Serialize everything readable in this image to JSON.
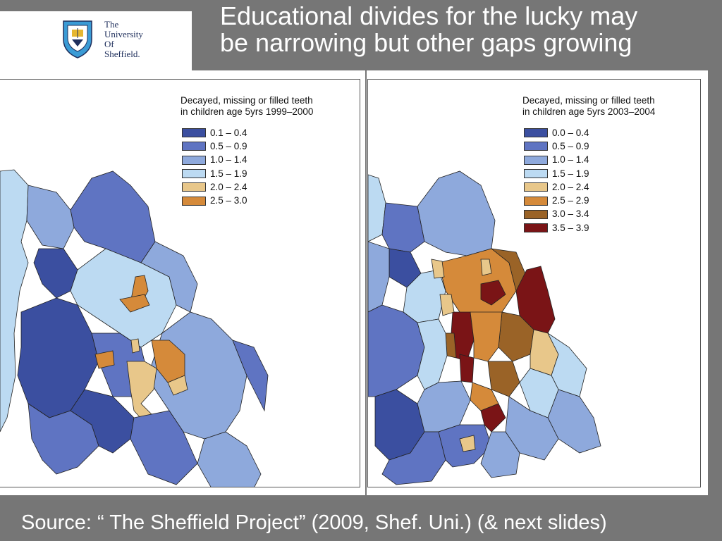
{
  "logo": {
    "line1": "The",
    "line2": "University",
    "line3": "Of",
    "line4": "Sheffield.",
    "icon": "university-crest-icon"
  },
  "title": {
    "line1": "Educational divides for the lucky may",
    "line2": "be narrowing but other gaps growing"
  },
  "maps": {
    "left": {
      "legend_title_line1": "Decayed, missing or filled teeth",
      "legend_title_line2": "in children age 5yrs 1999–2000",
      "classes": [
        {
          "label": "0.1 – 0.4",
          "color": "#3b4fa0"
        },
        {
          "label": "0.5 – 0.9",
          "color": "#5f74c2"
        },
        {
          "label": "1.0 – 1.4",
          "color": "#8ea9dc"
        },
        {
          "label": "1.5 – 1.9",
          "color": "#bcdaf2"
        },
        {
          "label": "2.0 – 2.4",
          "color": "#e8c78a"
        },
        {
          "label": "2.5 – 3.0",
          "color": "#d58a3a"
        }
      ]
    },
    "right": {
      "legend_title_line1": "Decayed, missing or filled teeth",
      "legend_title_line2": "in children age 5yrs 2003–2004",
      "classes": [
        {
          "label": "0.0 – 0.4",
          "color": "#3b4fa0"
        },
        {
          "label": "0.5 – 0.9",
          "color": "#5f74c2"
        },
        {
          "label": "1.0 – 1.4",
          "color": "#8ea9dc"
        },
        {
          "label": "1.5 – 1.9",
          "color": "#bcdaf2"
        },
        {
          "label": "2.0 – 2.4",
          "color": "#e8c78a"
        },
        {
          "label": "2.5 – 2.9",
          "color": "#d58a3a"
        },
        {
          "label": "3.0 – 3.4",
          "color": "#9a6327"
        },
        {
          "label": "3.5 – 3.9",
          "color": "#7a1416"
        }
      ]
    }
  },
  "source": "Source: “ The Sheffield Project” (2009, Shef. Uni.) (& next slides)"
}
